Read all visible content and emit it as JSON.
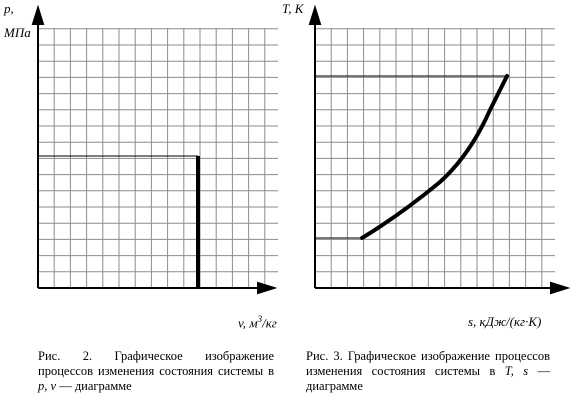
{
  "figures": [
    {
      "id": "pv",
      "y_label_top": "p,",
      "y_label_unit": "МПа",
      "x_label_prefix": "v, м",
      "x_label_sup": "3",
      "x_label_suffix": "/кг",
      "caption_text": "Рис. 2. Графическое изображение процессов изменения состояния системы в",
      "caption_vars": "p, v",
      "caption_tail": " — диаграмме"
    },
    {
      "id": "ts",
      "y_label_top": "T, К",
      "x_label": "s, кДж/(кг·К)",
      "caption_text": "Рис. 3. Графическое изображение процессов изменения состояния системы в",
      "caption_vars": "T, s",
      "caption_tail": " — диаграмме"
    }
  ],
  "colors": {
    "grid": "#8c8c8c",
    "axis": "#000000",
    "curve": "#000000"
  }
}
